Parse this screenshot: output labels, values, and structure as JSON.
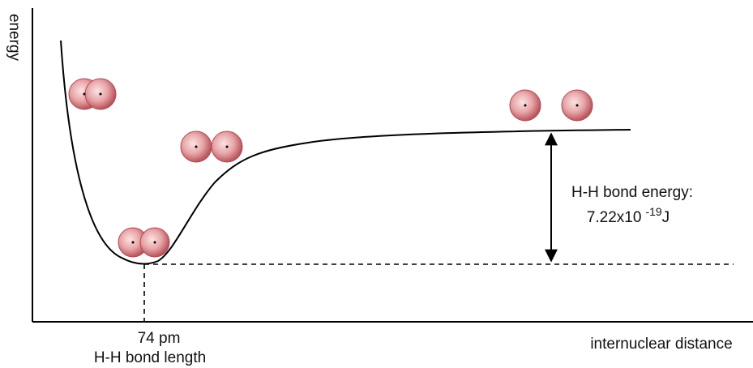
{
  "axes": {
    "y_label": "energy",
    "x_label": "internuclear distance"
  },
  "bond_length": {
    "value_text": "74 pm",
    "label": "H-H bond length"
  },
  "bond_energy": {
    "label": "H-H bond energy:",
    "mantissa": "7.22x10",
    "exponent": "-19",
    "unit": "J"
  }
}
